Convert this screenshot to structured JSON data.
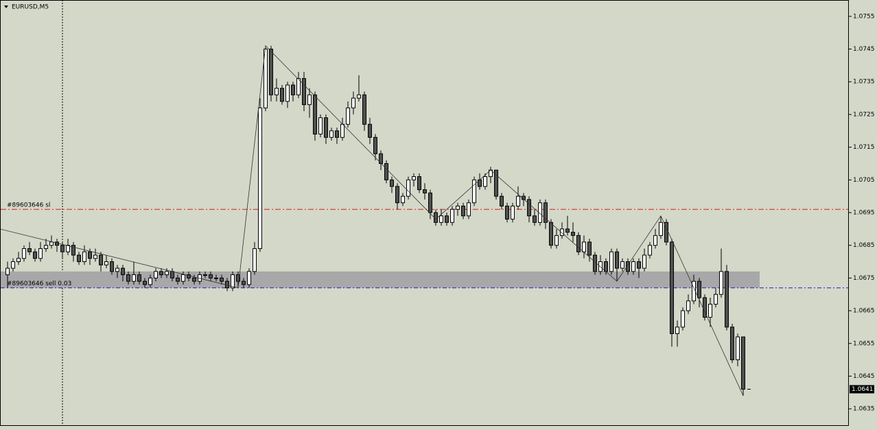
{
  "chart_data": {
    "type": "candlestick",
    "title": "EURUSD,M5",
    "open": [
      1.0676,
      1.0678,
      1.068,
      1.0681,
      1.0684,
      1.0683,
      1.0681,
      1.0684,
      1.0685,
      1.0686,
      1.0685,
      1.0683,
      1.0685,
      1.0682,
      1.068,
      1.0683,
      1.0681,
      1.0682,
      1.0679,
      1.068,
      1.0677,
      1.0678,
      1.0676,
      1.0674,
      1.0676,
      1.0674,
      1.0673,
      1.0675,
      1.0677,
      1.0676,
      1.0677,
      1.0675,
      1.0674,
      1.0676,
      1.0675,
      1.0674,
      1.0676,
      1.0676,
      1.0675,
      1.0675,
      1.0674,
      1.0672,
      1.0676,
      1.0674,
      1.0673,
      1.0677,
      1.0684,
      1.0727,
      1.0745,
      1.0731,
      1.0733,
      1.0729,
      1.0734,
      1.0731,
      1.0736,
      1.0728,
      1.0731,
      1.0719,
      1.0724,
      1.0718,
      1.072,
      1.0718,
      1.0722,
      1.0727,
      1.073,
      1.0731,
      1.0722,
      1.0718,
      1.0713,
      1.071,
      1.0705,
      1.0703,
      1.0698,
      1.07,
      1.0705,
      1.0706,
      1.0702,
      1.0701,
      1.0695,
      1.0692,
      1.0694,
      1.0692,
      1.0696,
      1.0697,
      1.0694,
      1.0698,
      1.0705,
      1.0703,
      1.0706,
      1.0708,
      1.07,
      1.0697,
      1.0693,
      1.0697,
      1.07,
      1.0699,
      1.0694,
      1.0692,
      1.0698,
      1.0692,
      1.0685,
      1.0688,
      1.069,
      1.0689,
      1.0688,
      1.0683,
      1.0686,
      1.0682,
      1.0677,
      1.068,
      1.0677,
      1.0683,
      1.0678,
      1.068,
      1.0677,
      1.068,
      1.0678,
      1.0682,
      1.0685,
      1.0688,
      1.0692,
      1.0686,
      1.0658,
      1.066,
      1.0665,
      1.0668,
      1.0674,
      1.0669,
      1.0663,
      1.0667,
      1.067,
      1.0677,
      1.066,
      1.065,
      1.0657
    ],
    "high": [
      1.068,
      1.0681,
      1.0683,
      1.0685,
      1.0686,
      1.0684,
      1.0686,
      1.0687,
      1.0688,
      1.0687,
      1.0686,
      1.0687,
      1.0686,
      1.0683,
      1.0685,
      1.0684,
      1.0684,
      1.0683,
      1.0682,
      1.0681,
      1.0679,
      1.0679,
      1.0677,
      1.068,
      1.0677,
      1.0675,
      1.0676,
      1.0678,
      1.0678,
      1.0678,
      1.0678,
      1.0676,
      1.0677,
      1.0677,
      1.0676,
      1.0677,
      1.0677,
      1.0677,
      1.0676,
      1.0676,
      1.0675,
      1.0677,
      1.0677,
      1.0675,
      1.0678,
      1.0686,
      1.073,
      1.0746,
      1.0746,
      1.0736,
      1.0734,
      1.0735,
      1.0735,
      1.0738,
      1.0738,
      1.0733,
      1.0732,
      1.0725,
      1.0725,
      1.0721,
      1.0721,
      1.0724,
      1.0729,
      1.0732,
      1.0737,
      1.0732,
      1.0724,
      1.0719,
      1.0714,
      1.0711,
      1.0706,
      1.0704,
      1.0701,
      1.0706,
      1.0707,
      1.0707,
      1.0704,
      1.0702,
      1.0696,
      1.0696,
      1.0695,
      1.0697,
      1.0698,
      1.0698,
      1.0699,
      1.0706,
      1.0707,
      1.0707,
      1.0709,
      1.0708,
      1.0701,
      1.0698,
      1.0698,
      1.0703,
      1.0701,
      1.07,
      1.0696,
      1.0699,
      1.0699,
      1.0693,
      1.069,
      1.0692,
      1.0694,
      1.0692,
      1.0689,
      1.0688,
      1.0687,
      1.0683,
      1.0682,
      1.0681,
      1.0684,
      1.0684,
      1.0681,
      1.0681,
      1.0681,
      1.0681,
      1.0684,
      1.0686,
      1.069,
      1.0694,
      1.0693,
      1.0687,
      1.0662,
      1.0666,
      1.067,
      1.0676,
      1.0675,
      1.067,
      1.0669,
      1.0672,
      1.0684,
      1.0679,
      1.0661,
      1.0658,
      1.0657
    ],
    "low": [
      1.0672,
      1.0677,
      1.0679,
      1.068,
      1.0682,
      1.068,
      1.068,
      1.0683,
      1.0684,
      1.0683,
      1.0681,
      1.0682,
      1.068,
      1.0679,
      1.0679,
      1.0679,
      1.068,
      1.0677,
      1.0678,
      1.0676,
      1.0675,
      1.0674,
      1.0673,
      1.0673,
      1.0673,
      1.0672,
      1.0672,
      1.0674,
      1.0675,
      1.0675,
      1.0674,
      1.0673,
      1.0673,
      1.0674,
      1.0673,
      1.0673,
      1.0675,
      1.0674,
      1.0674,
      1.0673,
      1.0671,
      1.0671,
      1.0672,
      1.0672,
      1.0672,
      1.0676,
      1.0683,
      1.0726,
      1.0729,
      1.0729,
      1.0728,
      1.0727,
      1.0729,
      1.073,
      1.0726,
      1.0724,
      1.0717,
      1.0718,
      1.0716,
      1.0717,
      1.0716,
      1.0717,
      1.0721,
      1.0725,
      1.0729,
      1.072,
      1.0716,
      1.0711,
      1.0708,
      1.0704,
      1.0701,
      1.0696,
      1.0697,
      1.0699,
      1.0703,
      1.0701,
      1.0699,
      1.0693,
      1.0691,
      1.0691,
      1.0691,
      1.0691,
      1.0694,
      1.0693,
      1.0693,
      1.0697,
      1.0702,
      1.0702,
      1.0704,
      1.0699,
      1.0696,
      1.0692,
      1.0692,
      1.0696,
      1.0697,
      1.0692,
      1.0691,
      1.0691,
      1.069,
      1.0684,
      1.0684,
      1.0687,
      1.0688,
      1.0686,
      1.0682,
      1.0681,
      1.068,
      1.0676,
      1.0676,
      1.0676,
      1.0676,
      1.0674,
      1.0677,
      1.0676,
      1.0676,
      1.0675,
      1.0677,
      1.0681,
      1.0684,
      1.0687,
      1.0685,
      1.0654,
      1.0654,
      1.0659,
      1.0664,
      1.0667,
      1.0666,
      1.0662,
      1.066,
      1.0666,
      1.0669,
      1.0659,
      1.0649,
      1.0648,
      1.0639
    ],
    "close": [
      1.0678,
      1.068,
      1.0681,
      1.0684,
      1.0683,
      1.0681,
      1.0684,
      1.0685,
      1.0686,
      1.0685,
      1.0683,
      1.0685,
      1.0682,
      1.068,
      1.0683,
      1.0681,
      1.0682,
      1.0679,
      1.068,
      1.0677,
      1.0678,
      1.0676,
      1.0674,
      1.0676,
      1.0674,
      1.0673,
      1.0675,
      1.0677,
      1.0676,
      1.0677,
      1.0675,
      1.0674,
      1.0676,
      1.0675,
      1.0674,
      1.0676,
      1.0676,
      1.0675,
      1.0675,
      1.0674,
      1.0672,
      1.0676,
      1.0674,
      1.0673,
      1.0677,
      1.0684,
      1.0727,
      1.0745,
      1.0731,
      1.0733,
      1.0729,
      1.0734,
      1.0731,
      1.0736,
      1.0728,
      1.0731,
      1.0719,
      1.0724,
      1.0718,
      1.072,
      1.0718,
      1.0722,
      1.0727,
      1.073,
      1.0731,
      1.0722,
      1.0718,
      1.0713,
      1.071,
      1.0705,
      1.0703,
      1.0698,
      1.07,
      1.0705,
      1.0706,
      1.0702,
      1.0701,
      1.0695,
      1.0692,
      1.0694,
      1.0692,
      1.0696,
      1.0697,
      1.0694,
      1.0698,
      1.0705,
      1.0703,
      1.0706,
      1.0708,
      1.07,
      1.0697,
      1.0693,
      1.0697,
      1.07,
      1.0699,
      1.0694,
      1.0692,
      1.0698,
      1.0692,
      1.0685,
      1.0688,
      1.069,
      1.0689,
      1.0688,
      1.0683,
      1.0686,
      1.0682,
      1.0677,
      1.068,
      1.0677,
      1.0683,
      1.0678,
      1.068,
      1.0677,
      1.068,
      1.0678,
      1.0682,
      1.0685,
      1.0688,
      1.0692,
      1.0686,
      1.0658,
      1.066,
      1.0665,
      1.0668,
      1.0674,
      1.0669,
      1.0663,
      1.0667,
      1.067,
      1.0677,
      1.066,
      1.065,
      1.0657,
      1.0641
    ],
    "bull_color": "#ffffff",
    "bear_color": "#505050",
    "ylim": [
      1.063,
      1.076
    ],
    "yticks": [
      1.0755,
      1.0745,
      1.0735,
      1.0725,
      1.0715,
      1.0705,
      1.0695,
      1.0685,
      1.0675,
      1.0665,
      1.0655,
      1.0645,
      1.0635
    ],
    "zigzag": {
      "x": [
        -1.4,
        42,
        47,
        78,
        88,
        111,
        119,
        134
      ],
      "y": [
        1.069,
        1.0672,
        1.0746,
        1.0693,
        1.0708,
        1.0674,
        1.0694,
        1.0639
      ],
      "color": "#333333"
    },
    "zone": {
      "from": 1.0672,
      "to": 1.0677,
      "end_x": 137,
      "color": "#a8a8a8"
    },
    "sl_line": {
      "label": "#89603646 sl",
      "price": 1.0696,
      "color": "#d42020"
    },
    "order_line": {
      "label": "#89603646 sell 0.03",
      "price": 1.0672,
      "color": "#1a1ad0"
    },
    "last_price": 1.0641
  }
}
